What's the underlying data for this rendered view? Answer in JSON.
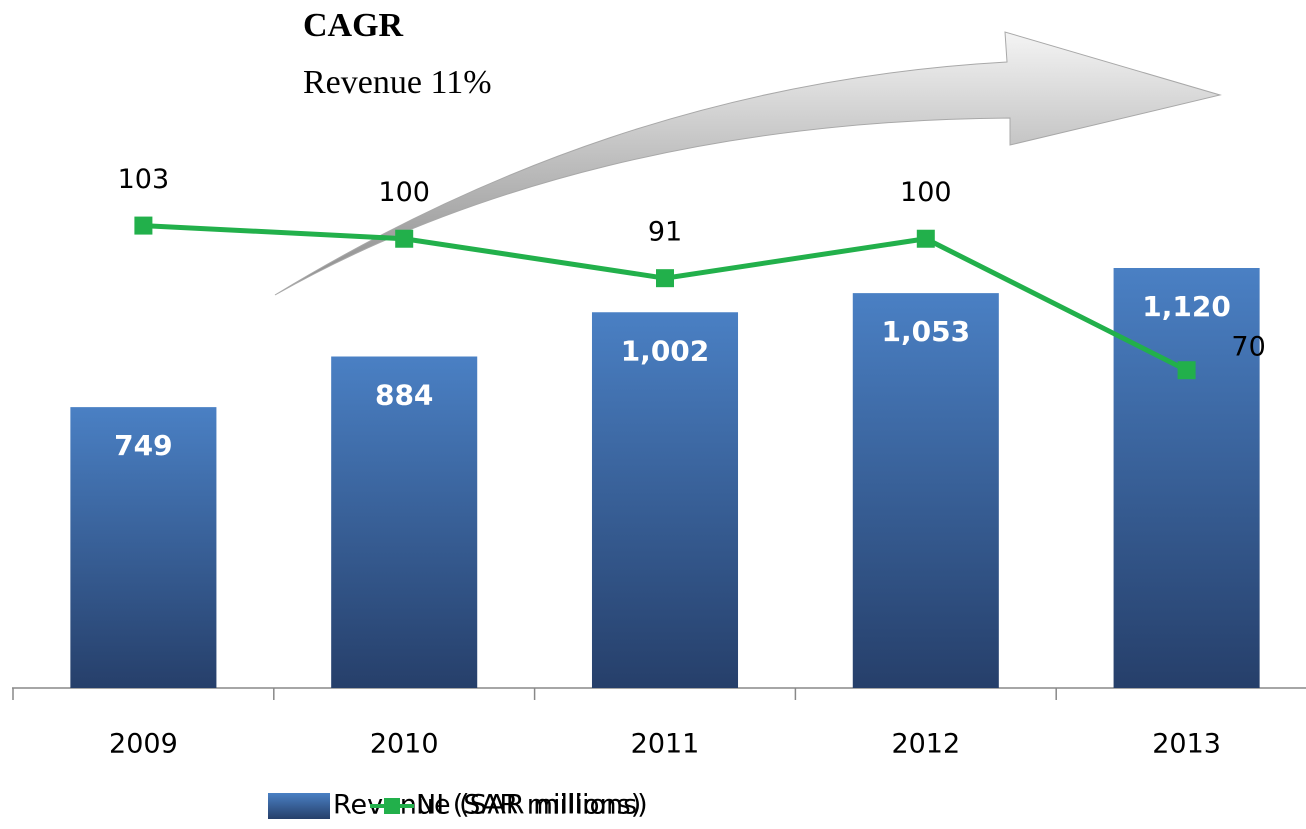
{
  "chart_data": {
    "type": "bar",
    "annotations": [
      "CAGR",
      "Revenue 11%"
    ],
    "categories": [
      "2009",
      "2010",
      "2011",
      "2012",
      "2013"
    ],
    "series": [
      {
        "name": "Revenue (SAR millions)",
        "type": "bar",
        "color": "#3d6aa8",
        "values": [
          749,
          884,
          1002,
          1053,
          1120
        ],
        "value_labels": [
          "749",
          "884",
          "1,002",
          "1,053",
          "1,120"
        ]
      },
      {
        "name": "NI (SAR millions)",
        "type": "line",
        "color": "#22b04b",
        "axis": "y2",
        "values": [
          103,
          100,
          91,
          100,
          70
        ]
      }
    ],
    "ylim": [
      0,
      1800
    ],
    "y2lim": [
      -2.5,
      151.5
    ],
    "grid": false,
    "legend": "bottom"
  }
}
